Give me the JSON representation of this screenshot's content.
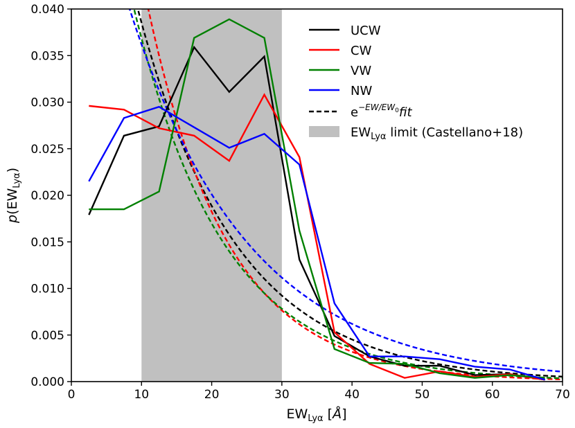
{
  "chart_data": {
    "type": "line",
    "xlim": [
      0,
      70
    ],
    "ylim": [
      0,
      0.04
    ],
    "x_ticks": [
      0,
      10,
      20,
      30,
      40,
      50,
      60,
      70
    ],
    "y_ticks": [
      0,
      0.005,
      0.01,
      0.015,
      0.02,
      0.025,
      0.03,
      0.035,
      0.04
    ],
    "x_tick_labels": [
      "0",
      "10",
      "20",
      "30",
      "40",
      "50",
      "60",
      "70"
    ],
    "y_tick_labels": [
      "0.000",
      "0.005",
      "0.010",
      "0.015",
      "0.020",
      "0.025",
      "0.030",
      "0.035",
      "0.040"
    ],
    "xlabel": {
      "main": "EW",
      "sub": "Lyα",
      "rest": " [",
      "unit": "Å",
      "close": "]"
    },
    "ylabel": {
      "prefix": "p",
      "open": "(EW",
      "sub": "Lyα",
      "close": ")"
    },
    "shaded_region": {
      "x0": 10,
      "x1": 30,
      "color": "#c0c0c0",
      "label_main": "EW",
      "label_sub": "Lyα",
      "label_rest": " limit (Castellano+18)"
    },
    "grid": false,
    "legend_position": "top-right",
    "x": [
      2.5,
      7.5,
      12.5,
      17.5,
      22.5,
      27.5,
      32.5,
      37.5,
      42.5,
      47.5,
      52.5,
      57.5,
      62.5,
      67.5
    ],
    "series": [
      {
        "name": "UCW",
        "color": "#000000",
        "values": [
          0.0179,
          0.0264,
          0.0274,
          0.0359,
          0.0311,
          0.0349,
          0.0131,
          0.0049,
          0.0027,
          0.0017,
          0.0017,
          0.0007,
          0.0008,
          0.0002
        ]
      },
      {
        "name": "CW",
        "color": "#ff0000",
        "values": [
          0.0296,
          0.0292,
          0.0272,
          0.0264,
          0.0237,
          0.0308,
          0.0241,
          0.0053,
          0.0019,
          0.0004,
          0.0011,
          0.0005,
          0.0008,
          0.0002
        ]
      },
      {
        "name": "VW",
        "color": "#008000",
        "values": [
          0.0185,
          0.0185,
          0.0204,
          0.0369,
          0.0389,
          0.0369,
          0.0162,
          0.0035,
          0.002,
          0.0019,
          0.0009,
          0.0004,
          0.0007,
          0.0004
        ]
      },
      {
        "name": "NW",
        "color": "#0000ff",
        "values": [
          0.0215,
          0.0283,
          0.0295,
          0.0273,
          0.0251,
          0.0266,
          0.0233,
          0.0084,
          0.0027,
          0.0027,
          0.0024,
          0.0016,
          0.0013,
          0.0002
        ]
      }
    ],
    "fits": [
      {
        "series": "UCW",
        "color": "#000000",
        "amplitude": 0.0787,
        "ew0": 14.0
      },
      {
        "series": "CW",
        "color": "#ff0000",
        "amplitude": 0.1038,
        "ew0": 11.5
      },
      {
        "series": "VW",
        "color": "#008000",
        "amplitude": 0.08,
        "ew0": 12.9
      },
      {
        "series": "NW",
        "color": "#0000ff",
        "amplitude": 0.0652,
        "ew0": 17.0
      }
    ],
    "fit_legend": {
      "base": "e",
      "exponent": "−EW/EW",
      "exponent_sub": "0",
      "suffix": "fit"
    }
  }
}
